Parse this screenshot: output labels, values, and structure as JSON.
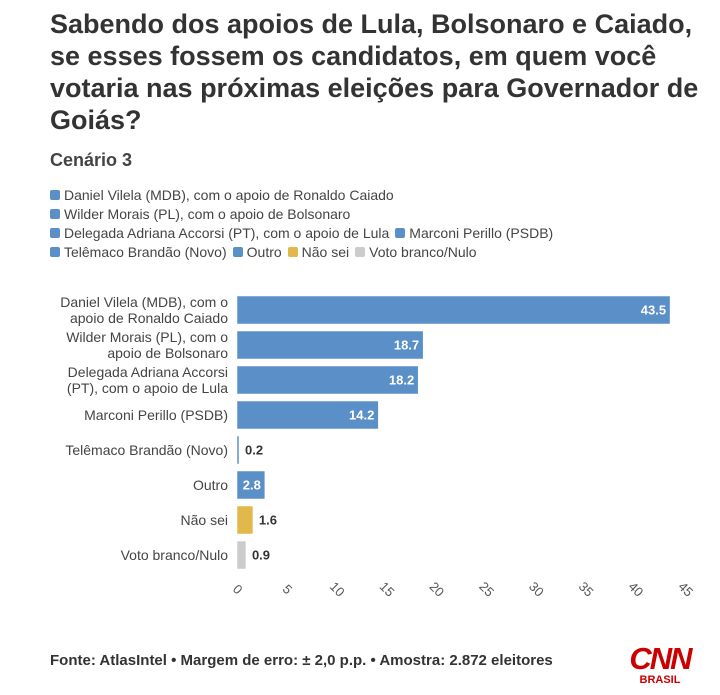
{
  "chart_data": {
    "type": "bar",
    "orientation": "horizontal",
    "title": "Sabendo dos apoios de Lula, Bolsonaro e Caiado, se esses fossem os candidatos, em quem você votaria nas próximas eleições para Governador de Goiás?",
    "subtitle": "Cenário 3",
    "categories": [
      "Daniel Vilela (MDB), com o apoio de Ronaldo Caiado",
      "Wilder Morais (PL), com o apoio de Bolsonaro",
      "Delegada Adriana Accorsi (PT), com o apoio de Lula",
      "Marconi Perillo (PSDB)",
      "Telêmaco Brandão (Novo)",
      "Outro",
      "Não sei",
      "Voto branco/Nulo"
    ],
    "values": [
      43.5,
      18.7,
      18.2,
      14.2,
      0.2,
      2.8,
      1.6,
      0.9
    ],
    "colors": [
      "#5b8fc7",
      "#5b8fc7",
      "#5b8fc7",
      "#5b8fc7",
      "#5b8fc7",
      "#5b8fc7",
      "#e2b84b",
      "#cccccc"
    ],
    "xlim": [
      0,
      45
    ],
    "xticks": [
      0,
      5,
      10,
      15,
      20,
      25,
      30,
      35,
      40,
      45
    ],
    "grid": false
  },
  "footer": "Fonte: AtlasIntel • Margem de erro: ± 2,0 p.p. • Amostra: 2.872 eleitores",
  "logo": {
    "name": "CNN",
    "sub": "BRASIL"
  }
}
